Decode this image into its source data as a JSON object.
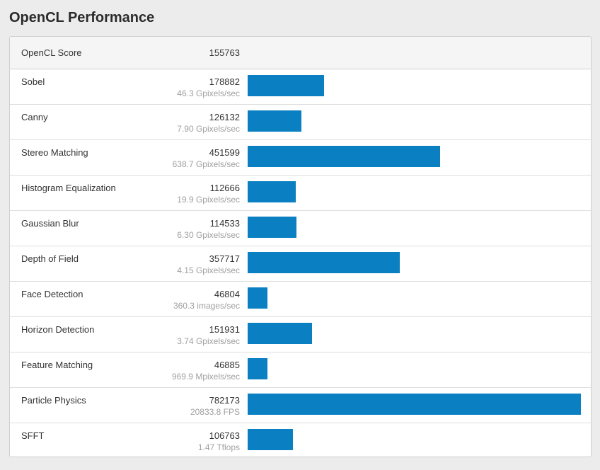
{
  "page": {
    "title": "OpenCL Performance"
  },
  "score": {
    "label": "OpenCL Score",
    "value": "155763"
  },
  "colors": {
    "bar": "#0a7fc2",
    "header_bg": "#f5f5f5",
    "page_bg": "#ececec"
  },
  "benchmarks": [
    {
      "name": "Sobel",
      "score": "178882",
      "rate": "46.3 Gpixels/sec"
    },
    {
      "name": "Canny",
      "score": "126132",
      "rate": "7.90 Gpixels/sec"
    },
    {
      "name": "Stereo Matching",
      "score": "451599",
      "rate": "638.7 Gpixels/sec"
    },
    {
      "name": "Histogram Equalization",
      "score": "112666",
      "rate": "19.9 Gpixels/sec"
    },
    {
      "name": "Gaussian Blur",
      "score": "114533",
      "rate": "6.30 Gpixels/sec"
    },
    {
      "name": "Depth of Field",
      "score": "357717",
      "rate": "4.15 Gpixels/sec"
    },
    {
      "name": "Face Detection",
      "score": "46804",
      "rate": "360.3 images/sec"
    },
    {
      "name": "Horizon Detection",
      "score": "151931",
      "rate": "3.74 Gpixels/sec"
    },
    {
      "name": "Feature Matching",
      "score": "46885",
      "rate": "969.9 Mpixels/sec"
    },
    {
      "name": "Particle Physics",
      "score": "782173",
      "rate": "20833.8 FPS"
    },
    {
      "name": "SFFT",
      "score": "106763",
      "rate": "1.47 Tflops"
    }
  ]
}
